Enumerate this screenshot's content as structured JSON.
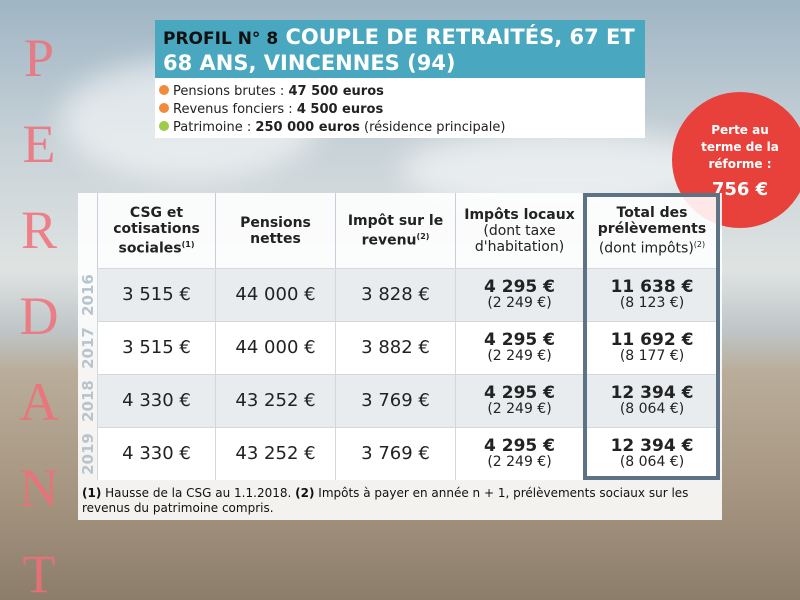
{
  "side_label": "PERDANT",
  "header": {
    "profile": "PROFIL N° 8",
    "title": "COUPLE DE RETRAITÉS, 67 ET 68 ANS, VINCENNES (94)",
    "items": [
      {
        "label": "Pensions brutes :",
        "value": "47 500 euros",
        "color": "#f08a3c"
      },
      {
        "label": "Revenus fonciers :",
        "value": "4 500 euros",
        "color": "#f08a3c"
      },
      {
        "label": "Patrimoine :",
        "value": "250 000 euros",
        "note": "(résidence principale)",
        "color": "#9ccc4a"
      }
    ]
  },
  "badge": {
    "label": "Perte au terme de la réforme :",
    "value": "756 €"
  },
  "table": {
    "columns": [
      {
        "title": "CSG et cotisations sociales",
        "note": "(1)"
      },
      {
        "title": "Pensions nettes"
      },
      {
        "title": "Impôt sur le revenu",
        "note": "(2)"
      },
      {
        "title": "Impôts locaux",
        "sub": "(dont taxe d'habitation)"
      },
      {
        "title": "Total des prélèvements",
        "sub": "(dont impôts)",
        "note": "(2)"
      }
    ],
    "rows": [
      {
        "year": "2016",
        "cells": [
          "3 515 €",
          "44 000 €",
          "3 828 €",
          {
            "main": "4 295 €",
            "sub": "(2 249 €)"
          },
          {
            "main": "11 638 €",
            "sub": "(8 123 €)"
          }
        ]
      },
      {
        "year": "2017",
        "cells": [
          "3 515 €",
          "44 000 €",
          "3 882 €",
          {
            "main": "4 295 €",
            "sub": "(2 249 €)"
          },
          {
            "main": "11 692 €",
            "sub": "(8 177 €)"
          }
        ]
      },
      {
        "year": "2018",
        "cells": [
          "4 330 €",
          "43 252 €",
          "3 769 €",
          {
            "main": "4 295 €",
            "sub": "(2 249 €)"
          },
          {
            "main": "12 394 €",
            "sub": "(8 064 €)"
          }
        ]
      },
      {
        "year": "2019",
        "cells": [
          "4 330 €",
          "43 252 €",
          "3 769 €",
          {
            "main": "4 295 €",
            "sub": "(2 249 €)"
          },
          {
            "main": "12 394 €",
            "sub": "(8 064 €)"
          }
        ]
      }
    ],
    "footnotes": [
      {
        "mark": "(1)",
        "text": "Hausse de la CSG au 1.1.2018."
      },
      {
        "mark": "(2)",
        "text": "Impôts à payer en année n + 1, prélèvements sociaux sur les revenus du patrimoine compris."
      }
    ]
  }
}
